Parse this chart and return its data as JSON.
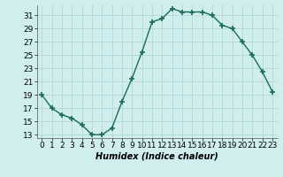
{
  "x": [
    0,
    1,
    2,
    3,
    4,
    5,
    6,
    7,
    8,
    9,
    10,
    11,
    12,
    13,
    14,
    15,
    16,
    17,
    18,
    19,
    20,
    21,
    22,
    23
  ],
  "y": [
    19,
    17,
    16,
    15.5,
    14.5,
    13,
    13,
    14,
    18,
    21.5,
    25.5,
    30,
    30.5,
    32,
    31.5,
    31.5,
    31.5,
    31,
    29.5,
    29,
    27,
    25,
    22.5,
    19.5
  ],
  "line_color": "#1a6b5a",
  "marker": "+",
  "marker_size": 4,
  "marker_lw": 1.2,
  "line_width": 1.0,
  "bg_color": "#d0eeee",
  "grid_color": "#b0d8d8",
  "xlabel": "Humidex (Indice chaleur)",
  "xlabel_fontsize": 7,
  "tick_fontsize": 6.5,
  "ylim": [
    12.5,
    32.5
  ],
  "yticks": [
    13,
    15,
    17,
    19,
    21,
    23,
    25,
    27,
    29,
    31
  ],
  "xlim": [
    -0.5,
    23.5
  ],
  "xticks": [
    0,
    1,
    2,
    3,
    4,
    5,
    6,
    7,
    8,
    9,
    10,
    11,
    12,
    13,
    14,
    15,
    16,
    17,
    18,
    19,
    20,
    21,
    22,
    23
  ]
}
